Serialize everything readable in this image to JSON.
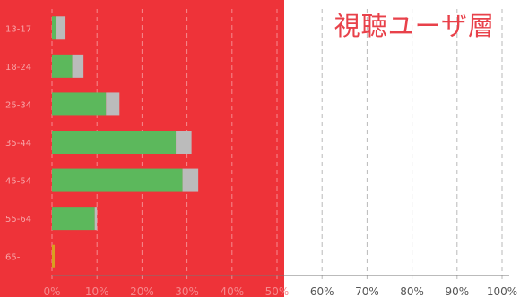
{
  "chart_data": {
    "type": "bar",
    "orientation": "horizontal",
    "stacked": true,
    "title": "視聴ユーザ層",
    "xlabel": "",
    "ylabel": "",
    "xlim": [
      0,
      100
    ],
    "x_ticks": [
      "0%",
      "10%",
      "20%",
      "30%",
      "40%",
      "50%",
      "60%",
      "70%",
      "80%",
      "90%",
      "100%"
    ],
    "grid": true,
    "categories": [
      "13-17",
      "18-24",
      "25-34",
      "35-44",
      "45-54",
      "55-64",
      "65-"
    ],
    "series": [
      {
        "color": "#5cb85c",
        "values": [
          1,
          4.5,
          12,
          27.5,
          29,
          9.5,
          0
        ]
      },
      {
        "color": "#bbbbbb",
        "values": [
          2,
          2.5,
          3,
          3.5,
          3.5,
          0.5,
          0
        ]
      },
      {
        "color": "#d9a020",
        "values": [
          0,
          0,
          0,
          0,
          0,
          0,
          0.6
        ]
      }
    ]
  }
}
